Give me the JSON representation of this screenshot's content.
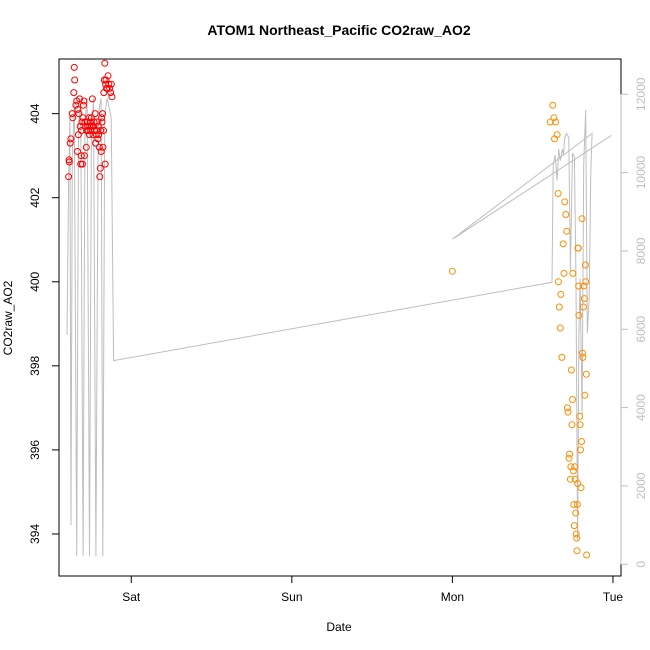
{
  "chart_data": {
    "type": "scatter",
    "title": "ATOM1 Northeast_Pacific CO2raw_AO2",
    "xlabel": "Date",
    "ylabel": "CO2raw_AO2",
    "x_ticks": [
      "Sat",
      "Sun",
      "Mon",
      "Tue"
    ],
    "x_tick_positions_days": [
      1,
      2,
      3,
      4
    ],
    "xlim_days": [
      0.55,
      4.05
    ],
    "y_ticks": [
      394,
      396,
      398,
      400,
      402,
      404
    ],
    "ylim": [
      393.0,
      405.3
    ],
    "y2_ticks": [
      0,
      2000,
      4000,
      6000,
      8000,
      10000,
      12000
    ],
    "y2lim": [
      -300,
      12900
    ],
    "colors": {
      "series_a": "#ff0000",
      "series_b": "#ff8c00",
      "line": "#bebebe",
      "axis": "#000000",
      "axis2": "#bebebe"
    },
    "series": [
      {
        "color": "#ff0000",
        "marker": "open-circle",
        "points": [
          [
            0.61,
            402.5
          ],
          [
            0.612,
            402.9
          ],
          [
            0.614,
            402.85
          ],
          [
            0.62,
            403.3
          ],
          [
            0.624,
            403.4
          ],
          [
            0.632,
            404.0
          ],
          [
            0.636,
            403.9
          ],
          [
            0.642,
            404.5
          ],
          [
            0.645,
            405.1
          ],
          [
            0.648,
            404.8
          ],
          [
            0.655,
            404.2
          ],
          [
            0.66,
            404.3
          ],
          [
            0.665,
            403.1
          ],
          [
            0.668,
            404.1
          ],
          [
            0.671,
            403.5
          ],
          [
            0.674,
            404.0
          ],
          [
            0.678,
            404.35
          ],
          [
            0.682,
            403.7
          ],
          [
            0.685,
            402.8
          ],
          [
            0.688,
            403.0
          ],
          [
            0.69,
            403.6
          ],
          [
            0.693,
            403.8
          ],
          [
            0.696,
            402.8
          ],
          [
            0.699,
            403.9
          ],
          [
            0.702,
            404.2
          ],
          [
            0.705,
            404.3
          ],
          [
            0.708,
            403.0
          ],
          [
            0.712,
            403.8
          ],
          [
            0.716,
            403.7
          ],
          [
            0.72,
            403.2
          ],
          [
            0.722,
            403.6
          ],
          [
            0.725,
            403.8
          ],
          [
            0.729,
            403.7
          ],
          [
            0.732,
            403.6
          ],
          [
            0.736,
            403.9
          ],
          [
            0.739,
            403.5
          ],
          [
            0.742,
            403.7
          ],
          [
            0.745,
            403.8
          ],
          [
            0.748,
            403.6
          ],
          [
            0.752,
            403.9
          ],
          [
            0.755,
            403.7
          ],
          [
            0.758,
            404.35
          ],
          [
            0.762,
            403.5
          ],
          [
            0.765,
            403.7
          ],
          [
            0.768,
            403.8
          ],
          [
            0.772,
            403.6
          ],
          [
            0.775,
            404.0
          ],
          [
            0.778,
            403.3
          ],
          [
            0.782,
            403.5
          ],
          [
            0.785,
            403.6
          ],
          [
            0.788,
            403.8
          ],
          [
            0.792,
            403.4
          ],
          [
            0.795,
            403.7
          ],
          [
            0.798,
            403.5
          ],
          [
            0.801,
            403.2
          ],
          [
            0.804,
            402.5
          ],
          [
            0.807,
            402.7
          ],
          [
            0.81,
            403.6
          ],
          [
            0.813,
            403.1
          ],
          [
            0.816,
            403.9
          ],
          [
            0.818,
            403.8
          ],
          [
            0.821,
            404.0
          ],
          [
            0.824,
            403.2
          ],
          [
            0.827,
            403.6
          ],
          [
            0.829,
            404.5
          ],
          [
            0.832,
            404.8
          ],
          [
            0.835,
            405.2
          ],
          [
            0.838,
            402.8
          ],
          [
            0.84,
            404.7
          ],
          [
            0.843,
            404.8
          ],
          [
            0.846,
            404.6
          ],
          [
            0.85,
            404.6
          ],
          [
            0.855,
            404.9
          ],
          [
            0.86,
            404.7
          ],
          [
            0.865,
            404.6
          ],
          [
            0.872,
            404.5
          ],
          [
            0.876,
            404.7
          ],
          [
            0.88,
            404.4
          ]
        ]
      },
      {
        "color": "#ff8c00",
        "marker": "open-circle",
        "points": [
          [
            3.0,
            400.25
          ],
          [
            3.61,
            403.8
          ],
          [
            3.625,
            404.2
          ],
          [
            3.632,
            403.9
          ],
          [
            3.636,
            403.4
          ],
          [
            3.642,
            403.8
          ],
          [
            3.652,
            403.5
          ],
          [
            3.658,
            402.1
          ],
          [
            3.66,
            400.0
          ],
          [
            3.666,
            399.4
          ],
          [
            3.672,
            398.9
          ],
          [
            3.676,
            399.7
          ],
          [
            3.682,
            398.2
          ],
          [
            3.69,
            400.9
          ],
          [
            3.695,
            400.2
          ],
          [
            3.7,
            401.9
          ],
          [
            3.706,
            401.6
          ],
          [
            3.712,
            401.2
          ],
          [
            3.716,
            397.0
          ],
          [
            3.72,
            396.9
          ],
          [
            3.726,
            395.8
          ],
          [
            3.73,
            395.9
          ],
          [
            3.735,
            395.3
          ],
          [
            3.738,
            395.6
          ],
          [
            3.741,
            397.9
          ],
          [
            3.744,
            396.6
          ],
          [
            3.748,
            397.2
          ],
          [
            3.75,
            400.2
          ],
          [
            3.753,
            395.5
          ],
          [
            3.756,
            394.7
          ],
          [
            3.759,
            394.2
          ],
          [
            3.762,
            395.6
          ],
          [
            3.765,
            395.3
          ],
          [
            3.768,
            394.5
          ],
          [
            3.771,
            394.0
          ],
          [
            3.774,
            393.9
          ],
          [
            3.776,
            393.6
          ],
          [
            3.778,
            394.7
          ],
          [
            3.78,
            395.2
          ],
          [
            3.782,
            400.8
          ],
          [
            3.784,
            400.8
          ],
          [
            3.786,
            399.9
          ],
          [
            3.788,
            399.2
          ],
          [
            3.792,
            396.8
          ],
          [
            3.795,
            396.6
          ],
          [
            3.798,
            396.0
          ],
          [
            3.801,
            395.1
          ],
          [
            3.804,
            396.2
          ],
          [
            3.807,
            401.5
          ],
          [
            3.81,
            398.3
          ],
          [
            3.813,
            398.2
          ],
          [
            3.816,
            399.4
          ],
          [
            3.819,
            399.9
          ],
          [
            3.822,
            399.6
          ],
          [
            3.825,
            397.3
          ],
          [
            3.828,
            400.4
          ],
          [
            3.831,
            400.0
          ],
          [
            3.834,
            397.8
          ],
          [
            3.836,
            393.5
          ]
        ]
      }
    ],
    "line_series": {
      "axis": "right",
      "color": "#bebebe",
      "points": [
        [
          0.6,
          5850
        ],
        [
          0.61,
          9750
        ],
        [
          0.618,
          11350
        ],
        [
          0.625,
          1000
        ],
        [
          0.633,
          10400
        ],
        [
          0.645,
          11750
        ],
        [
          0.66,
          200
        ],
        [
          0.672,
          11200
        ],
        [
          0.685,
          11800
        ],
        [
          0.7,
          200
        ],
        [
          0.712,
          11300
        ],
        [
          0.725,
          11900
        ],
        [
          0.74,
          200
        ],
        [
          0.752,
          10900
        ],
        [
          0.765,
          11900
        ],
        [
          0.78,
          200
        ],
        [
          0.795,
          11500
        ],
        [
          0.812,
          11900
        ],
        [
          0.823,
          200
        ],
        [
          0.835,
          11500
        ],
        [
          0.85,
          11900
        ],
        [
          0.875,
          11400
        ],
        [
          0.89,
          5200
        ],
        [
          3.62,
          7200
        ],
        [
          3.628,
          10200
        ],
        [
          3.64,
          10450
        ],
        [
          3.652,
          9800
        ],
        [
          3.662,
          10600
        ],
        [
          3.672,
          10300
        ],
        [
          3.685,
          10600
        ],
        [
          3.692,
          10450
        ],
        [
          3.7,
          10900
        ],
        [
          3.71,
          11000
        ],
        [
          3.725,
          10900
        ],
        [
          3.735,
          7500
        ],
        [
          3.748,
          10500
        ],
        [
          3.76,
          10400
        ],
        [
          3.77,
          7200
        ],
        [
          3.78,
          600
        ],
        [
          3.788,
          5900
        ],
        [
          3.795,
          7300
        ],
        [
          3.808,
          3800
        ],
        [
          3.818,
          10200
        ],
        [
          3.83,
          11600
        ],
        [
          3.84,
          5900
        ],
        [
          3.852,
          6800
        ],
        [
          3.862,
          10000
        ],
        [
          3.87,
          11000
        ],
        [
          3.0,
          8300
        ],
        [
          3.99,
          10950
        ]
      ]
    }
  }
}
